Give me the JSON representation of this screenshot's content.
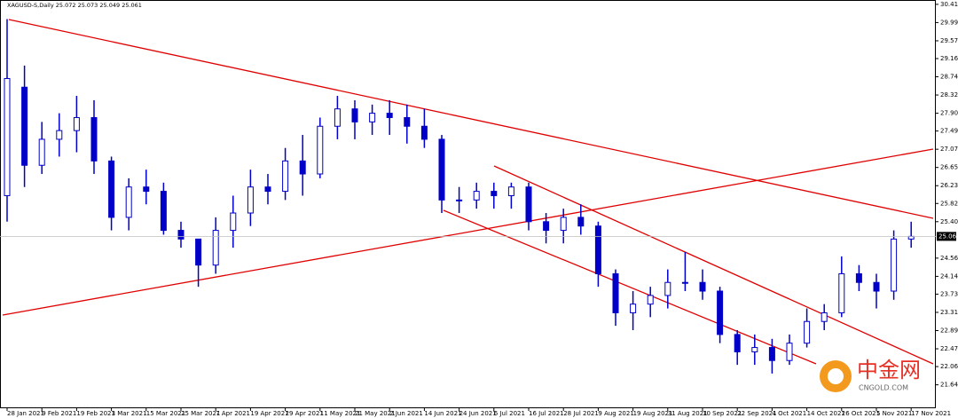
{
  "chart_data": {
    "type": "candlestick",
    "title": "XAGUSD-S,Daily  25.072 25.073 25.049 25.061",
    "categories": [
      "28 Jan 2021",
      null,
      "9 Feb 2021",
      null,
      "19 Feb 2021",
      null,
      "3 Mar 2021",
      null,
      "15 Mar 2021",
      null,
      "25 Mar 2021",
      null,
      "7 Apr 2021",
      null,
      "19 Apr 2021",
      null,
      "29 Apr 2021",
      null,
      "11 May 2021",
      null,
      "21 May 2021",
      null,
      "2 Jun 2021",
      null,
      "14 Jun 2021",
      null,
      "24 Jun 2021",
      null,
      "6 Jul 2021",
      null,
      "16 Jul 2021",
      null,
      "28 Jul 2021",
      null,
      "9 Aug 2021",
      null,
      "19 Aug 2021",
      null,
      "31 Aug 2021",
      null,
      "10 Sep 2021",
      null,
      "22 Sep 2021",
      null,
      "4 Oct 2021",
      null,
      "14 Oct 2021",
      null,
      "26 Oct 2021",
      null,
      "5 Nov 2021",
      null,
      "17 Nov 2021"
    ],
    "open": [
      26.0,
      28.5,
      26.7,
      27.3,
      27.5,
      27.8,
      26.8,
      25.5,
      26.2,
      26.1,
      25.2,
      25.0,
      24.4,
      25.2,
      25.6,
      26.2,
      26.1,
      26.8,
      26.5,
      27.6,
      28.0,
      27.7,
      27.9,
      27.8,
      27.6,
      27.3,
      25.9,
      25.9,
      26.1,
      26.0,
      26.2,
      25.4,
      25.2,
      25.5,
      25.3,
      24.2,
      23.3,
      23.5,
      23.7,
      24.0,
      24.0,
      23.8,
      22.8,
      22.4,
      22.5,
      22.2,
      22.6,
      23.1,
      23.3,
      24.2,
      24.0,
      23.8,
      25.0
    ],
    "high": [
      30.07,
      29.0,
      27.7,
      27.9,
      28.3,
      28.2,
      26.9,
      26.4,
      26.6,
      26.3,
      25.4,
      25.0,
      25.5,
      26.0,
      26.6,
      26.5,
      27.1,
      27.4,
      27.8,
      28.3,
      28.2,
      28.1,
      28.2,
      28.1,
      28.0,
      27.4,
      26.2,
      26.3,
      26.3,
      26.3,
      26.3,
      25.6,
      25.7,
      25.8,
      25.4,
      24.3,
      23.8,
      23.9,
      24.3,
      24.7,
      24.3,
      23.9,
      22.9,
      22.8,
      22.7,
      22.8,
      23.4,
      23.5,
      24.6,
      24.4,
      24.2,
      25.2,
      25.4
    ],
    "low": [
      25.4,
      26.2,
      26.5,
      26.9,
      27.0,
      26.5,
      25.2,
      25.2,
      25.8,
      25.1,
      24.8,
      23.9,
      24.2,
      24.8,
      25.3,
      25.8,
      25.9,
      26.0,
      26.4,
      27.3,
      27.3,
      27.4,
      27.4,
      27.2,
      27.1,
      25.6,
      25.6,
      25.7,
      25.7,
      25.7,
      25.2,
      24.9,
      24.9,
      25.1,
      23.9,
      23.0,
      22.9,
      23.2,
      23.4,
      23.8,
      23.6,
      22.6,
      22.1,
      22.1,
      21.9,
      22.1,
      22.5,
      22.9,
      23.2,
      23.8,
      23.4,
      23.6,
      24.8
    ],
    "close": [
      28.7,
      26.7,
      27.3,
      27.5,
      27.8,
      26.8,
      25.5,
      26.2,
      26.1,
      25.2,
      25.0,
      24.4,
      25.2,
      25.6,
      26.2,
      26.1,
      26.8,
      26.5,
      27.6,
      28.0,
      27.7,
      27.9,
      27.8,
      27.6,
      27.3,
      25.9,
      25.9,
      26.1,
      26.0,
      26.2,
      25.4,
      25.2,
      25.5,
      25.3,
      24.2,
      23.3,
      23.5,
      23.7,
      24.0,
      24.0,
      23.8,
      22.8,
      22.4,
      22.5,
      22.2,
      22.6,
      23.1,
      23.3,
      24.2,
      24.0,
      23.8,
      25.0,
      25.061
    ],
    "current_price": 25.061,
    "color": "#0000c8",
    "ylim": [
      21.1,
      30.51
    ],
    "yticks": [
      {
        "value": 30.41,
        "label": "30.410"
      },
      {
        "value": 29.99,
        "label": "29.990"
      },
      {
        "value": 29.57,
        "label": "29.570"
      },
      {
        "value": 29.16,
        "label": "29.160"
      },
      {
        "value": 28.74,
        "label": "28.740"
      },
      {
        "value": 28.32,
        "label": "28.320"
      },
      {
        "value": 27.9,
        "label": "27.900"
      },
      {
        "value": 27.49,
        "label": "27.490"
      },
      {
        "value": 27.07,
        "label": "27.070"
      },
      {
        "value": 26.65,
        "label": "26.650"
      },
      {
        "value": 26.23,
        "label": "26.230"
      },
      {
        "value": 25.82,
        "label": "25.820"
      },
      {
        "value": 25.4,
        "label": "25.400"
      },
      {
        "value": 24.56,
        "label": "24.560"
      },
      {
        "value": 24.14,
        "label": "24.140"
      },
      {
        "value": 23.73,
        "label": "23.730"
      },
      {
        "value": 23.31,
        "label": "23.310"
      },
      {
        "value": 22.89,
        "label": "22.890"
      },
      {
        "value": 22.47,
        "label": "22.470"
      },
      {
        "value": 22.06,
        "label": "22.060"
      },
      {
        "value": 21.64,
        "label": "21.640"
      }
    ],
    "watermark": {
      "brand": "中金网",
      "url": "CNGOLD.COM"
    }
  }
}
